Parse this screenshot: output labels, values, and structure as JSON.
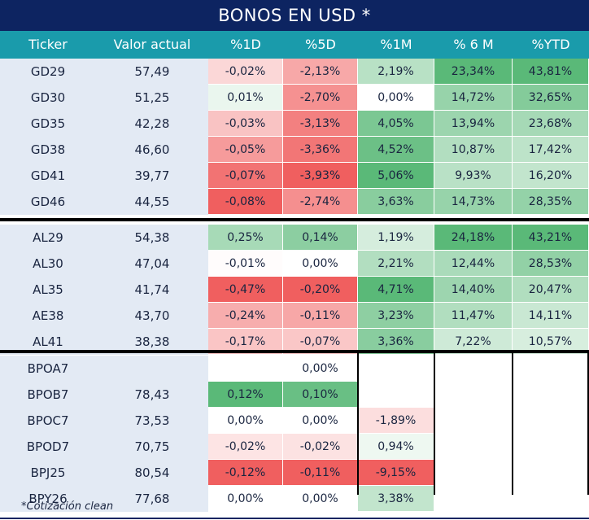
{
  "title": "BONOS EN USD *",
  "headers": [
    "Ticker",
    "Valor actual",
    "%1D",
    "%5D",
    "%1M",
    "% 6 M",
    "%YTD"
  ],
  "footer_note": "*Cotización clean",
  "groups": [
    {
      "rows": [
        {
          "ticker": "GD29",
          "valor": "57,49",
          "d1": "-0,02%",
          "d5": "-2,13%",
          "m1": "2,19%",
          "m6": "23,34%",
          "ytd": "43,81%"
        },
        {
          "ticker": "GD30",
          "valor": "51,25",
          "d1": "0,01%",
          "d5": "-2,70%",
          "m1": "0,00%",
          "m6": "14,72%",
          "ytd": "32,65%"
        },
        {
          "ticker": "GD35",
          "valor": "42,28",
          "d1": "-0,03%",
          "d5": "-3,13%",
          "m1": "4,05%",
          "m6": "13,94%",
          "ytd": "23,68%"
        },
        {
          "ticker": "GD38",
          "valor": "46,60",
          "d1": "-0,05%",
          "d5": "-3,36%",
          "m1": "4,52%",
          "m6": "10,87%",
          "ytd": "17,42%"
        },
        {
          "ticker": "GD41",
          "valor": "39,77",
          "d1": "-0,07%",
          "d5": "-3,93%",
          "m1": "5,06%",
          "m6": "9,93%",
          "ytd": "16,20%"
        },
        {
          "ticker": "GD46",
          "valor": "44,55",
          "d1": "-0,08%",
          "d5": "-2,74%",
          "m1": "3,63%",
          "m6": "14,73%",
          "ytd": "28,35%"
        }
      ]
    },
    {
      "rows": [
        {
          "ticker": "AL29",
          "valor": "54,38",
          "d1": "0,25%",
          "d5": "0,14%",
          "m1": "1,19%",
          "m6": "24,18%",
          "ytd": "43,21%"
        },
        {
          "ticker": "AL30",
          "valor": "47,04",
          "d1": "-0,01%",
          "d5": "0,00%",
          "m1": "2,21%",
          "m6": "12,44%",
          "ytd": "28,53%"
        },
        {
          "ticker": "AL35",
          "valor": "41,74",
          "d1": "-0,47%",
          "d5": "-0,20%",
          "m1": "4,71%",
          "m6": "14,40%",
          "ytd": "20,47%"
        },
        {
          "ticker": "AE38",
          "valor": "43,70",
          "d1": "-0,24%",
          "d5": "-0,11%",
          "m1": "3,23%",
          "m6": "11,47%",
          "ytd": "14,11%"
        },
        {
          "ticker": "AL41",
          "valor": "38,38",
          "d1": "-0,17%",
          "d5": "-0,07%",
          "m1": "3,36%",
          "m6": "7,22%",
          "ytd": "10,57%"
        }
      ]
    },
    {
      "rows": [
        {
          "ticker": "BPOA7",
          "valor": "",
          "d1": "",
          "d5": "0,00%",
          "m1": "",
          "m6": "",
          "ytd": ""
        },
        {
          "ticker": "BPOB7",
          "valor": "78,43",
          "d1": "0,12%",
          "d5": "0,10%",
          "m1": "",
          "m6": "",
          "ytd": ""
        },
        {
          "ticker": "BPOC7",
          "valor": "73,53",
          "d1": "0,00%",
          "d5": "0,00%",
          "m1": "-1,89%",
          "m6": "",
          "ytd": ""
        },
        {
          "ticker": "BPOD7",
          "valor": "70,75",
          "d1": "-0,02%",
          "d5": "-0,02%",
          "m1": "0,94%",
          "m6": "",
          "ytd": ""
        },
        {
          "ticker": "BPJ25",
          "valor": "80,54",
          "d1": "-0,12%",
          "d5": "-0,11%",
          "m1": "-9,15%",
          "m6": "",
          "ytd": ""
        },
        {
          "ticker": "BPY26",
          "valor": "77,68",
          "d1": "0,00%",
          "d5": "0,00%",
          "m1": "3,38%",
          "m6": "",
          "ytd": ""
        }
      ]
    }
  ]
}
